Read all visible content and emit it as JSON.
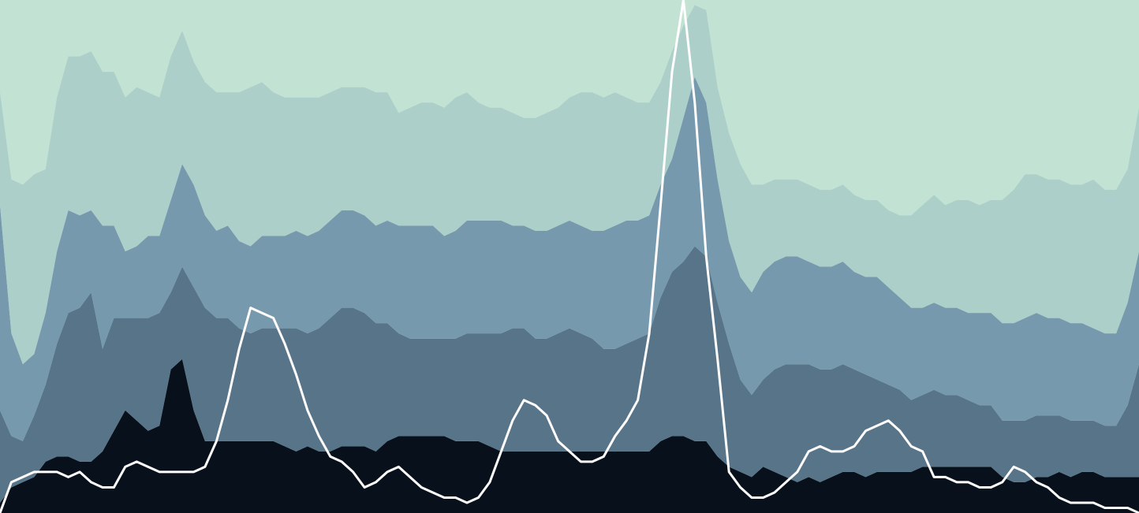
{
  "chart_data": {
    "type": "area",
    "stacked": true,
    "overlay_type": "line",
    "x": [
      0,
      0.01,
      0.02,
      0.03,
      0.04,
      0.05,
      0.06,
      0.07,
      0.08,
      0.09,
      0.1,
      0.11,
      0.12,
      0.13,
      0.14,
      0.15,
      0.16,
      0.17,
      0.18,
      0.19,
      0.2,
      0.21,
      0.22,
      0.23,
      0.24,
      0.25,
      0.26,
      0.27,
      0.28,
      0.29,
      0.3,
      0.31,
      0.32,
      0.33,
      0.34,
      0.35,
      0.36,
      0.37,
      0.38,
      0.39,
      0.4,
      0.41,
      0.42,
      0.43,
      0.44,
      0.45,
      0.46,
      0.47,
      0.48,
      0.49,
      0.5,
      0.51,
      0.52,
      0.53,
      0.54,
      0.55,
      0.56,
      0.57,
      0.58,
      0.59,
      0.6,
      0.61,
      0.62,
      0.63,
      0.64,
      0.65,
      0.66,
      0.67,
      0.68,
      0.69,
      0.7,
      0.71,
      0.72,
      0.73,
      0.74,
      0.75,
      0.76,
      0.77,
      0.78,
      0.79,
      0.8,
      0.81,
      0.82,
      0.83,
      0.84,
      0.85,
      0.86,
      0.87,
      0.88,
      0.89,
      0.9,
      0.91,
      0.92,
      0.93,
      0.94,
      0.95,
      0.96,
      0.97,
      0.98,
      0.99,
      1.0
    ],
    "xlim": [
      0,
      1
    ],
    "ylim": [
      0,
      1
    ],
    "grid": false,
    "series": [
      {
        "values": [
          0.02,
          0.05,
          0.06,
          0.07,
          0.1,
          0.11,
          0.11,
          0.1,
          0.1,
          0.12,
          0.16,
          0.2,
          0.18,
          0.16,
          0.17,
          0.28,
          0.3,
          0.2,
          0.14,
          0.14,
          0.14,
          0.14,
          0.14,
          0.14,
          0.14,
          0.13,
          0.12,
          0.13,
          0.12,
          0.12,
          0.13,
          0.13,
          0.13,
          0.12,
          0.14,
          0.15,
          0.15,
          0.15,
          0.15,
          0.15,
          0.14,
          0.14,
          0.14,
          0.13,
          0.12,
          0.12,
          0.12,
          0.12,
          0.12,
          0.12,
          0.12,
          0.12,
          0.12,
          0.12,
          0.12,
          0.12,
          0.12,
          0.12,
          0.14,
          0.15,
          0.15,
          0.14,
          0.14,
          0.11,
          0.09,
          0.08,
          0.07,
          0.09,
          0.08,
          0.07,
          0.06,
          0.07,
          0.06,
          0.07,
          0.08,
          0.08,
          0.07,
          0.08,
          0.08,
          0.08,
          0.08,
          0.09,
          0.09,
          0.09,
          0.09,
          0.09,
          0.09,
          0.09,
          0.07,
          0.06,
          0.06,
          0.07,
          0.07,
          0.08,
          0.07,
          0.08,
          0.08,
          0.07,
          0.07,
          0.07,
          0.07
        ],
        "color": "#08111b"
      },
      {
        "values": [
          0.18,
          0.1,
          0.08,
          0.12,
          0.15,
          0.22,
          0.28,
          0.3,
          0.33,
          0.2,
          0.22,
          0.18,
          0.2,
          0.22,
          0.22,
          0.15,
          0.18,
          0.24,
          0.26,
          0.24,
          0.24,
          0.22,
          0.21,
          0.22,
          0.22,
          0.23,
          0.24,
          0.22,
          0.24,
          0.26,
          0.27,
          0.27,
          0.26,
          0.25,
          0.23,
          0.2,
          0.19,
          0.19,
          0.19,
          0.19,
          0.2,
          0.21,
          0.21,
          0.22,
          0.23,
          0.24,
          0.24,
          0.22,
          0.22,
          0.23,
          0.24,
          0.23,
          0.22,
          0.2,
          0.2,
          0.21,
          0.22,
          0.23,
          0.28,
          0.32,
          0.34,
          0.38,
          0.36,
          0.3,
          0.24,
          0.18,
          0.16,
          0.17,
          0.2,
          0.22,
          0.23,
          0.22,
          0.22,
          0.21,
          0.21,
          0.2,
          0.2,
          0.18,
          0.17,
          0.16,
          0.14,
          0.14,
          0.15,
          0.14,
          0.14,
          0.13,
          0.12,
          0.12,
          0.11,
          0.12,
          0.12,
          0.12,
          0.12,
          0.11,
          0.11,
          0.1,
          0.1,
          0.1,
          0.1,
          0.14,
          0.22
        ],
        "color": "#587489"
      },
      {
        "values": [
          0.4,
          0.2,
          0.15,
          0.12,
          0.14,
          0.18,
          0.2,
          0.18,
          0.16,
          0.24,
          0.18,
          0.13,
          0.14,
          0.16,
          0.15,
          0.18,
          0.2,
          0.2,
          0.18,
          0.17,
          0.18,
          0.17,
          0.17,
          0.18,
          0.18,
          0.18,
          0.19,
          0.19,
          0.19,
          0.19,
          0.19,
          0.19,
          0.19,
          0.19,
          0.2,
          0.21,
          0.22,
          0.22,
          0.22,
          0.2,
          0.21,
          0.22,
          0.22,
          0.22,
          0.22,
          0.2,
          0.2,
          0.21,
          0.21,
          0.21,
          0.21,
          0.21,
          0.21,
          0.23,
          0.24,
          0.24,
          0.23,
          0.23,
          0.22,
          0.22,
          0.28,
          0.33,
          0.3,
          0.24,
          0.2,
          0.2,
          0.2,
          0.21,
          0.21,
          0.21,
          0.21,
          0.2,
          0.2,
          0.2,
          0.2,
          0.19,
          0.19,
          0.2,
          0.19,
          0.18,
          0.18,
          0.17,
          0.17,
          0.17,
          0.17,
          0.17,
          0.18,
          0.18,
          0.19,
          0.19,
          0.2,
          0.2,
          0.19,
          0.19,
          0.19,
          0.19,
          0.18,
          0.18,
          0.18,
          0.2,
          0.22
        ],
        "color": "#7799ae"
      },
      {
        "values": [
          0.22,
          0.3,
          0.35,
          0.35,
          0.28,
          0.3,
          0.3,
          0.31,
          0.31,
          0.3,
          0.3,
          0.3,
          0.31,
          0.28,
          0.27,
          0.28,
          0.26,
          0.24,
          0.26,
          0.27,
          0.26,
          0.29,
          0.31,
          0.3,
          0.28,
          0.27,
          0.26,
          0.27,
          0.26,
          0.25,
          0.24,
          0.24,
          0.25,
          0.26,
          0.25,
          0.22,
          0.23,
          0.24,
          0.24,
          0.25,
          0.26,
          0.25,
          0.23,
          0.22,
          0.22,
          0.22,
          0.21,
          0.22,
          0.23,
          0.23,
          0.24,
          0.26,
          0.27,
          0.26,
          0.26,
          0.24,
          0.23,
          0.22,
          0.2,
          0.21,
          0.18,
          0.14,
          0.18,
          0.18,
          0.21,
          0.22,
          0.21,
          0.17,
          0.16,
          0.15,
          0.15,
          0.15,
          0.15,
          0.15,
          0.15,
          0.15,
          0.15,
          0.15,
          0.15,
          0.16,
          0.18,
          0.2,
          0.21,
          0.2,
          0.21,
          0.22,
          0.21,
          0.22,
          0.24,
          0.26,
          0.28,
          0.27,
          0.27,
          0.27,
          0.27,
          0.27,
          0.29,
          0.28,
          0.28,
          0.26,
          0.28
        ],
        "color": "#adcfc9"
      }
    ],
    "overlay_line": {
      "values": [
        0.0,
        0.06,
        0.07,
        0.08,
        0.08,
        0.08,
        0.07,
        0.08,
        0.06,
        0.05,
        0.05,
        0.09,
        0.1,
        0.09,
        0.08,
        0.08,
        0.08,
        0.08,
        0.09,
        0.14,
        0.22,
        0.32,
        0.4,
        0.39,
        0.38,
        0.33,
        0.27,
        0.2,
        0.15,
        0.11,
        0.1,
        0.08,
        0.05,
        0.06,
        0.08,
        0.09,
        0.07,
        0.05,
        0.04,
        0.03,
        0.03,
        0.02,
        0.03,
        0.06,
        0.12,
        0.18,
        0.22,
        0.21,
        0.19,
        0.14,
        0.12,
        0.1,
        0.1,
        0.11,
        0.15,
        0.18,
        0.22,
        0.35,
        0.6,
        0.86,
        1.0,
        0.8,
        0.5,
        0.3,
        0.08,
        0.05,
        0.03,
        0.03,
        0.04,
        0.06,
        0.08,
        0.12,
        0.13,
        0.12,
        0.12,
        0.13,
        0.16,
        0.17,
        0.18,
        0.16,
        0.13,
        0.12,
        0.07,
        0.07,
        0.06,
        0.06,
        0.05,
        0.05,
        0.06,
        0.09,
        0.08,
        0.06,
        0.05,
        0.03,
        0.02,
        0.02,
        0.02,
        0.01,
        0.01,
        0.01,
        0.0
      ],
      "color": "#ffffff"
    },
    "background_color": "#c2e3d3",
    "title": "",
    "xlabel": "",
    "ylabel": ""
  }
}
